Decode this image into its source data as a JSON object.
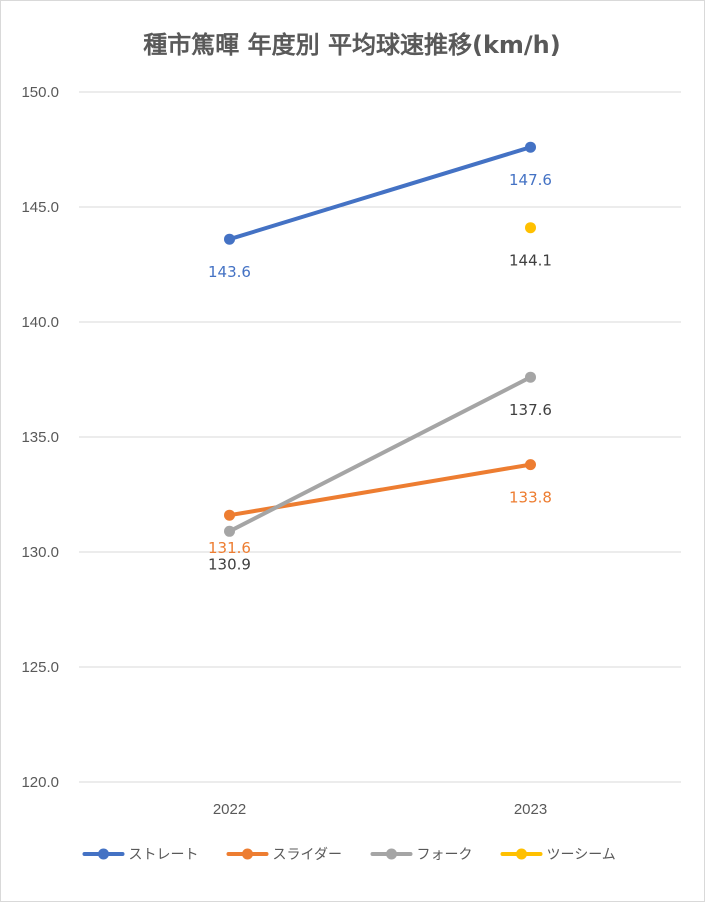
{
  "chart_data": {
    "type": "line",
    "title": "種市篤暉 年度別 平均球速推移(km/h)",
    "categories": [
      "2022",
      "2023"
    ],
    "ylim": [
      120,
      150
    ],
    "yticks": [
      "120.0",
      "125.0",
      "130.0",
      "135.0",
      "140.0",
      "145.0",
      "150.0"
    ],
    "grid": true,
    "legend_position": "bottom",
    "series": [
      {
        "name": "ストレート",
        "color": "#4472C4",
        "values": [
          143.6,
          147.6
        ],
        "labels": [
          "143.6",
          "147.6"
        ],
        "label_colors": [
          "#4472C4",
          "#4472C4"
        ]
      },
      {
        "name": "スライダー",
        "color": "#ED7D31",
        "values": [
          131.6,
          133.8
        ],
        "labels": [
          "131.6",
          "133.8"
        ],
        "label_colors": [
          "#ED7D31",
          "#ED7D31"
        ]
      },
      {
        "name": "フォーク",
        "color": "#A5A5A5",
        "values": [
          130.9,
          137.6
        ],
        "labels": [
          "130.9",
          "137.6"
        ],
        "label_colors": [
          "#404040",
          "#404040"
        ]
      },
      {
        "name": "ツーシーム",
        "color": "#FFC000",
        "values": [
          null,
          144.1
        ],
        "labels": [
          null,
          "144.1"
        ],
        "label_colors": [
          null,
          "#404040"
        ]
      }
    ]
  }
}
